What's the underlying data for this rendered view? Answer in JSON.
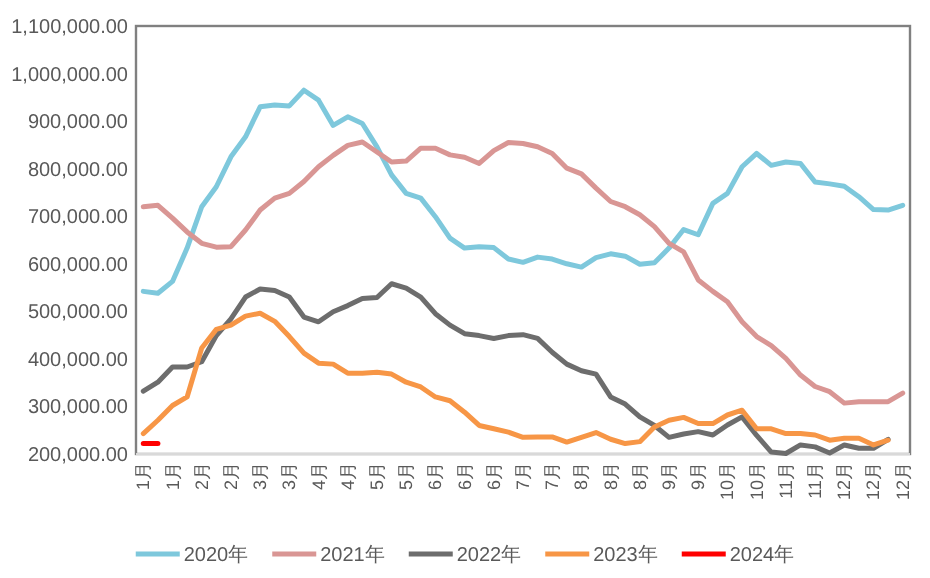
{
  "chart_data": {
    "type": "line",
    "categories": [
      "1月",
      null,
      "1月",
      null,
      "2月",
      null,
      "2月",
      null,
      "3月",
      null,
      "3月",
      null,
      "4月",
      null,
      "4月",
      null,
      "5月",
      null,
      "5月",
      null,
      "6月",
      null,
      "6月",
      null,
      "6月",
      null,
      "7月",
      null,
      "7月",
      null,
      "8月",
      null,
      "8月",
      null,
      "8月",
      null,
      "9月",
      null,
      "9月",
      null,
      "10月",
      null,
      "10月",
      null,
      "11月",
      null,
      "11月",
      null,
      "12月",
      null,
      "12月",
      null,
      "12月"
    ],
    "series": [
      {
        "name": "2020年",
        "color": "#7ec8dc",
        "values": [
          542000,
          538000,
          563000,
          633000,
          720000,
          762000,
          825000,
          867000,
          930000,
          934000,
          932000,
          965000,
          944000,
          891000,
          909000,
          895000,
          846000,
          787000,
          748000,
          738000,
          699000,
          654000,
          633000,
          636000,
          634000,
          610000,
          603000,
          614000,
          610000,
          600000,
          593000,
          613000,
          621000,
          616000,
          599000,
          602000,
          633000,
          672000,
          661000,
          727000,
          748000,
          804000,
          832000,
          807000,
          814000,
          811000,
          772000,
          768000,
          763000,
          741000,
          714000,
          713000,
          723000
        ]
      },
      {
        "name": "2021年",
        "color": "#d99694",
        "values": [
          720000,
          723000,
          696000,
          667000,
          643000,
          635000,
          636000,
          671000,
          713000,
          738000,
          748000,
          773000,
          804000,
          828000,
          849000,
          856000,
          835000,
          814000,
          816000,
          843000,
          843000,
          829000,
          824000,
          811000,
          838000,
          855000,
          853000,
          846000,
          832000,
          801000,
          789000,
          759000,
          731000,
          720000,
          703000,
          678000,
          643000,
          625000,
          566000,
          542000,
          520000,
          478000,
          447000,
          428000,
          401000,
          366000,
          342000,
          331000,
          307000,
          310000,
          310000,
          310000,
          328000
        ]
      },
      {
        "name": "2022年",
        "color": "#6d6d6d",
        "values": [
          332000,
          351000,
          383000,
          383000,
          394000,
          449000,
          484000,
          530000,
          547000,
          544000,
          530000,
          488000,
          478000,
          499000,
          512000,
          527000,
          529000,
          558000,
          549000,
          530000,
          495000,
          471000,
          453000,
          449000,
          443000,
          449000,
          451000,
          443000,
          414000,
          389000,
          375000,
          368000,
          320000,
          305000,
          278000,
          260000,
          235000,
          242000,
          247000,
          240000,
          261000,
          278000,
          239000,
          204000,
          201000,
          219000,
          215000,
          202000,
          219000,
          212000,
          212000,
          231000,
          null
        ]
      },
      {
        "name": "2023年",
        "color": "#f79646",
        "values": [
          243000,
          271000,
          302000,
          320000,
          423000,
          462000,
          471000,
          490000,
          496000,
          479000,
          447000,
          412000,
          391000,
          389000,
          370000,
          370000,
          372000,
          368000,
          351000,
          341000,
          320000,
          312000,
          288000,
          260000,
          253000,
          246000,
          235000,
          236000,
          236000,
          225000,
          235000,
          245000,
          231000,
          222000,
          226000,
          257000,
          271000,
          277000,
          264000,
          264000,
          282000,
          292000,
          253000,
          253000,
          243000,
          243000,
          240000,
          229000,
          233000,
          233000,
          219000,
          229000,
          null
        ]
      },
      {
        "name": "2024年",
        "color": "#ff0000",
        "values": [
          222000,
          222000,
          null,
          null,
          null,
          null,
          null,
          null,
          null,
          null,
          null,
          null,
          null,
          null,
          null,
          null,
          null,
          null,
          null,
          null,
          null,
          null,
          null,
          null,
          null,
          null,
          null,
          null,
          null,
          null,
          null,
          null,
          null,
          null,
          null,
          null,
          null,
          null,
          null,
          null,
          null,
          null,
          null,
          null,
          null,
          null,
          null,
          null,
          null,
          null,
          null,
          null,
          null
        ]
      }
    ],
    "ylim": [
      200000,
      1100000
    ],
    "yticks": [
      {
        "value": 200000,
        "label": "200,000.00"
      },
      {
        "value": 300000,
        "label": "300,000.00"
      },
      {
        "value": 400000,
        "label": "400,000.00"
      },
      {
        "value": 500000,
        "label": "500,000.00"
      },
      {
        "value": 600000,
        "label": "600,000.00"
      },
      {
        "value": 700000,
        "label": "700,000.00"
      },
      {
        "value": 800000,
        "label": "800,000.00"
      },
      {
        "value": 900000,
        "label": "900,000.00"
      },
      {
        "value": 1000000,
        "label": "1,000,000.00"
      },
      {
        "value": 1100000,
        "label": "1,100,000.00"
      }
    ],
    "legend": "bottom"
  }
}
